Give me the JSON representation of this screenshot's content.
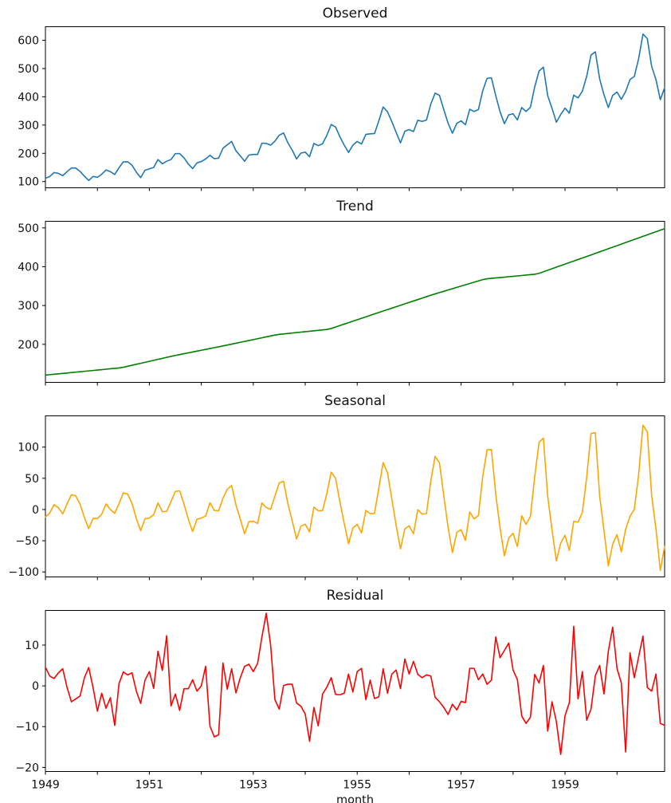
{
  "figure": {
    "xlabel": "month",
    "x_start_year": 1949,
    "x_tick_years": [
      1949,
      1950,
      1951,
      1952,
      1953,
      1954,
      1955,
      1956,
      1957,
      1958,
      1959,
      1960
    ],
    "x_label_years": [
      1949,
      1951,
      1953,
      1955,
      1957,
      1959
    ],
    "frame_color": "#000000",
    "background": "#ffffff"
  },
  "chart_data": [
    {
      "type": "line",
      "title": "Observed",
      "slug": "observed",
      "color": "#1f77b4",
      "ylim": [
        78,
        648
      ],
      "yticks": [
        100,
        200,
        300,
        400,
        500,
        600
      ],
      "x_range": [
        "1949-01",
        "1960-12"
      ],
      "values": [
        112,
        118,
        132,
        129,
        121,
        135,
        148,
        148,
        136,
        119,
        104,
        118,
        115,
        126,
        141,
        135,
        125,
        149,
        170,
        170,
        158,
        133,
        114,
        140,
        145,
        150,
        178,
        163,
        172,
        178,
        199,
        199,
        184,
        162,
        146,
        166,
        171,
        180,
        193,
        181,
        183,
        218,
        230,
        242,
        209,
        191,
        172,
        194,
        196,
        196,
        236,
        235,
        229,
        243,
        264,
        272,
        237,
        211,
        180,
        201,
        204,
        188,
        235,
        227,
        234,
        264,
        302,
        293,
        259,
        229,
        203,
        229,
        242,
        233,
        267,
        269,
        270,
        315,
        364,
        347,
        312,
        274,
        237,
        278,
        284,
        277,
        317,
        313,
        318,
        374,
        413,
        405,
        355,
        306,
        271,
        306,
        315,
        301,
        356,
        348,
        355,
        422,
        465,
        467,
        404,
        347,
        305,
        336,
        340,
        318,
        362,
        348,
        363,
        435,
        491,
        505,
        404,
        359,
        310,
        337,
        360,
        342,
        406,
        396,
        420,
        472,
        548,
        559,
        463,
        407,
        362,
        405,
        417,
        391,
        419,
        461,
        472,
        535,
        622,
        606,
        508,
        461,
        390,
        432
      ]
    },
    {
      "type": "line",
      "title": "Trend",
      "slug": "trend",
      "color": "#008000",
      "ylim": [
        102,
        517
      ],
      "yticks": [
        200,
        300,
        400,
        500
      ],
      "x_range": [
        "1949-01",
        "1960-12"
      ],
      "values": [
        120.7,
        121.8,
        122.9,
        124.0,
        125.0,
        126.1,
        127.2,
        128.3,
        129.4,
        130.5,
        131.5,
        132.6,
        133.7,
        134.8,
        135.9,
        137.0,
        138.0,
        139.1,
        140.9,
        143.5,
        146.0,
        148.6,
        151.1,
        153.6,
        156.2,
        158.7,
        161.3,
        163.8,
        166.4,
        168.9,
        171.3,
        173.5,
        175.8,
        178.0,
        180.2,
        182.5,
        184.7,
        186.9,
        189.2,
        191.4,
        193.6,
        195.9,
        198.2,
        200.5,
        202.8,
        205.2,
        207.5,
        209.8,
        212.2,
        214.5,
        216.8,
        219.2,
        221.5,
        223.8,
        225.6,
        226.7,
        227.9,
        229.1,
        230.2,
        231.4,
        232.5,
        233.7,
        234.9,
        236.0,
        237.2,
        238.3,
        240.8,
        244.6,
        248.3,
        252.1,
        255.8,
        259.6,
        263.3,
        267.1,
        270.8,
        274.6,
        278.4,
        282.1,
        285.8,
        289.5,
        293.2,
        296.9,
        300.6,
        304.3,
        308.0,
        311.7,
        315.3,
        319.0,
        322.7,
        326.4,
        329.9,
        333.3,
        336.6,
        340.0,
        343.3,
        346.7,
        350.0,
        353.4,
        356.7,
        360.0,
        363.4,
        366.7,
        368.9,
        370.0,
        371.0,
        372.1,
        373.1,
        374.2,
        375.2,
        376.3,
        377.3,
        378.4,
        379.4,
        380.5,
        383.0,
        386.9,
        390.9,
        394.8,
        398.8,
        402.7,
        406.6,
        410.6,
        414.5,
        418.5,
        422.4,
        426.4,
        430.3,
        434.3,
        438.3,
        442.3,
        446.3,
        450.3,
        454.2,
        458.2,
        462.2,
        466.2,
        470.2,
        474.2,
        478.2,
        482.1,
        486.1,
        490.1,
        494.1,
        498.1
      ]
    },
    {
      "type": "line",
      "title": "Seasonal",
      "slug": "seasonal",
      "color": "#ffa500",
      "ylim": [
        -108,
        150
      ],
      "yticks": [
        -100,
        -50,
        0,
        50,
        100
      ],
      "x_range": [
        "1949-01",
        "1960-12"
      ],
      "values": [
        -12.0,
        -5.5,
        7.8,
        2.7,
        -7.0,
        9.2,
        23.6,
        22.0,
        8.4,
        -12.9,
        -30.7,
        -14.3,
        -14.3,
        -7.5,
        9.0,
        0.0,
        -6.1,
        9.5,
        26.7,
        24.6,
        9.7,
        -14.7,
        -34.0,
        -14.6,
        -13.7,
        -8.3,
        10.6,
        -3.5,
        -3.1,
        12.6,
        29.1,
        29.8,
        8.7,
        -15.5,
        -35.3,
        -15.6,
        -13.7,
        -10.3,
        10.9,
        -1.5,
        -2.1,
        18.1,
        32.4,
        38.5,
        7.4,
        -15.6,
        -38.9,
        -19.6,
        -18.7,
        -22.4,
        10.6,
        3.1,
        0.3,
        21.6,
        42.5,
        45.2,
        8.8,
        -18.4,
        -47.2,
        -26.8,
        -23.6,
        -36.0,
        3.9,
        -2.0,
        -1.8,
        25.9,
        59.8,
        50.0,
        12.3,
        -21.8,
        -54.9,
        -29.5,
        -23.8,
        -37.2,
        -1.5,
        -6.6,
        -6.2,
        34.8,
        75.2,
        58.8,
        16.7,
        -25.7,
        -63.1,
        -31.0,
        -26.1,
        -39.0,
        -0.3,
        -7.4,
        -6.6,
        45.9,
        85.1,
        74.5,
        22.2,
        -29.0,
        -69.1,
        -36.5,
        -32.3,
        -49.5,
        -3.8,
        -15.1,
        -9.5,
        53.2,
        95.8,
        96.0,
        24.4,
        -30.0,
        -74.3,
        -45.7,
        -38.0,
        -59.4,
        -10.0,
        -23.8,
        -10.9,
        52.5,
        107.5,
        114.5,
        21.0,
        -33.0,
        -82.5,
        -53.7,
        -41.4,
        -65.7,
        -18.9,
        -20.2,
        -4.9,
        51.6,
        121.8,
        122.9,
        21.1,
        -33.9,
        -90.4,
        -55.6,
        -40.3,
        -67.7,
        -31.6,
        -11.0,
        0.4,
        55.7,
        135.1,
        124.2,
        22.8,
        -31.2,
        -97.5,
        -59.2
      ]
    },
    {
      "type": "line",
      "title": "Residual",
      "slug": "residual",
      "color": "#ff0000",
      "ylim": [
        -21,
        18.5
      ],
      "yticks": [
        -20,
        -10,
        0,
        10
      ],
      "x_range": [
        "1949-01",
        "1960-12"
      ],
      "values": [
        4.6,
        2.4,
        1.8,
        3.2,
        4.2,
        -0.4,
        -3.9,
        -3.2,
        -2.5,
        2.0,
        4.5,
        -0.4,
        -6.2,
        -1.8,
        -5.5,
        -2.9,
        -9.7,
        0.6,
        3.4,
        2.7,
        3.2,
        -1.3,
        -4.3,
        1.4,
        3.5,
        -0.6,
        8.5,
        3.8,
        12.3,
        -4.9,
        -2.0,
        -6.0,
        -0.7,
        -0.7,
        1.5,
        -1.3,
        0.0,
        4.8,
        -9.9,
        -12.5,
        -12.0,
        5.6,
        -0.8,
        4.2,
        -1.7,
        2.0,
        4.8,
        5.3,
        3.5,
        5.5,
        12.0,
        17.8,
        10.1,
        -3.4,
        -5.7,
        0.1,
        0.4,
        0.4,
        -4.2,
        -5.0,
        -6.9,
        -13.6,
        -5.3,
        -9.8,
        -2.0,
        -0.3,
        2.0,
        -2.1,
        -2.2,
        -1.8,
        2.9,
        -1.5,
        3.5,
        4.3,
        -3.4,
        1.4,
        -3.1,
        -2.7,
        4.2,
        -1.8,
        2.9,
        3.9,
        -0.7,
        6.6,
        2.9,
        6.0,
        2.8,
        2.0,
        2.7,
        2.4,
        -2.8,
        -3.9,
        -5.3,
        -7.0,
        -4.5,
        -5.9,
        -3.8,
        -4.1,
        4.3,
        4.3,
        1.5,
        2.9,
        0.4,
        1.4,
        12.0,
        6.9,
        8.7,
        10.5,
        3.9,
        1.5,
        -7.4,
        -9.2,
        -7.7,
        2.8,
        0.7,
        5.0,
        -11.1,
        -3.9,
        -8.8,
        -16.8,
        -7.3,
        -4.1,
        14.6,
        -3.2,
        3.5,
        -8.4,
        -5.7,
        2.5,
        5.0,
        -2.0,
        8.5,
        14.4,
        4.3,
        0.7,
        -16.2,
        8.1,
        2.0,
        7.1,
        12.2,
        -0.4,
        -1.3,
        2.9,
        -9.2,
        -9.7
      ]
    }
  ]
}
